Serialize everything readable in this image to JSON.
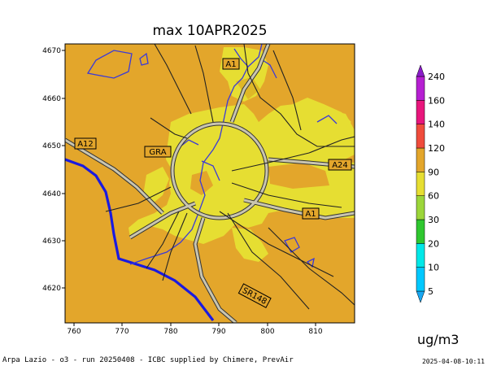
{
  "title": "max 10APR2025",
  "x_ticks": [
    "760",
    "770",
    "780",
    "790",
    "800",
    "810"
  ],
  "y_ticks": [
    "4670",
    "4660",
    "4650",
    "4640",
    "4630",
    "4620"
  ],
  "road_labels": [
    "A1",
    "A12",
    "GRA",
    "A24",
    "A1",
    "SR148"
  ],
  "colorbar": {
    "levels": [
      "5",
      "10",
      "20",
      "30",
      "60",
      "90",
      "120",
      "140",
      "160",
      "240"
    ],
    "colors": [
      "#18a7f2",
      "#00c8ff",
      "#00e8e8",
      "#2fc72f",
      "#9cd63a",
      "#e6de32",
      "#e3a62b",
      "#f04c3c",
      "#e8167c",
      "#b620d2",
      "#8a1cc9"
    ]
  },
  "unit": "ug/m3",
  "footer_left": "Arpa Lazio - o3 - run 20250408 - ICBC supplied by Chimere, PrevAir",
  "footer_right": "2025-04-08-10:11",
  "legend_colors": {
    "background_field": "#e3a62b",
    "urban_field": "#e6de32",
    "coastline": "#1a1ae0",
    "rivers": "#3a3ad8",
    "roads_fill": "#c9c5b0"
  }
}
